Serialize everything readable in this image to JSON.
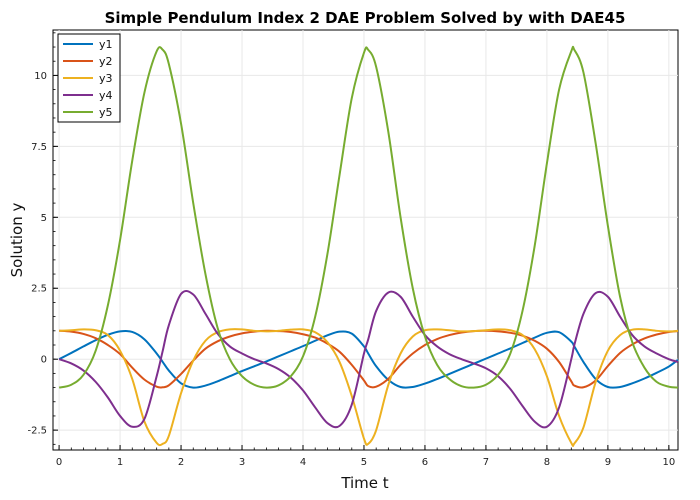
{
  "chart_data": {
    "type": "line",
    "title": "Simple Pendulum Index 2 DAE Problem Solved by with DAE45",
    "xlabel": "Time t",
    "ylabel": "Solution y",
    "xlim": [
      -0.1,
      10.15
    ],
    "ylim": [
      -3.2,
      11.6
    ],
    "xticks": [
      0,
      1,
      2,
      3,
      4,
      5,
      6,
      7,
      8,
      9,
      10
    ],
    "xtick_labels": [
      "0",
      "1",
      "2",
      "3",
      "4",
      "5",
      "6",
      "7",
      "8",
      "9",
      "10"
    ],
    "yticks": [
      -2.5,
      0,
      2.5,
      5,
      7.5,
      10
    ],
    "ytick_labels": [
      "-2.5",
      "0",
      "2.5",
      "5",
      "7.5",
      "10"
    ],
    "grid": true,
    "legend_position": "top-left",
    "x": [
      0,
      0.2,
      0.4,
      0.6,
      0.8,
      1.0,
      1.2,
      1.4,
      1.6,
      1.7,
      1.8,
      2.0,
      2.2,
      2.4,
      2.6,
      2.8,
      3.0,
      3.2,
      3.4,
      3.6,
      3.8,
      4.0,
      4.2,
      4.4,
      4.6,
      4.8,
      5.0,
      5.07,
      5.2,
      5.4,
      5.6,
      5.8,
      6.0,
      6.2,
      6.4,
      6.6,
      6.8,
      7.0,
      7.2,
      7.4,
      7.6,
      7.8,
      8.0,
      8.2,
      8.4,
      8.45,
      8.6,
      8.8,
      9.0,
      9.2,
      9.4,
      9.6,
      9.8,
      10.0,
      10.15
    ],
    "series": [
      {
        "name": "y1",
        "color": "#0072bd",
        "values": [
          0,
          0.22,
          0.45,
          0.67,
          0.86,
          0.98,
          0.96,
          0.7,
          0.2,
          -0.1,
          -0.4,
          -0.85,
          -1.0,
          -0.93,
          -0.78,
          -0.6,
          -0.42,
          -0.25,
          -0.08,
          0.1,
          0.28,
          0.46,
          0.65,
          0.84,
          0.97,
          0.9,
          0.45,
          0.2,
          -0.25,
          -0.73,
          -0.98,
          -0.98,
          -0.86,
          -0.7,
          -0.52,
          -0.34,
          -0.16,
          0.02,
          0.2,
          0.38,
          0.57,
          0.76,
          0.93,
          0.95,
          0.62,
          0.45,
          -0.1,
          -0.7,
          -0.98,
          -0.98,
          -0.85,
          -0.68,
          -0.48,
          -0.26,
          -0.02
        ]
      },
      {
        "name": "y2",
        "color": "#d95319",
        "values": [
          1,
          0.97,
          0.89,
          0.74,
          0.5,
          0.18,
          -0.3,
          -0.72,
          -0.97,
          -0.99,
          -0.92,
          -0.52,
          -0.05,
          0.37,
          0.63,
          0.8,
          0.91,
          0.97,
          1.0,
          0.99,
          0.96,
          0.88,
          0.76,
          0.55,
          0.26,
          -0.2,
          -0.75,
          -0.95,
          -0.97,
          -0.69,
          -0.2,
          0.2,
          0.5,
          0.71,
          0.85,
          0.94,
          0.99,
          1.0,
          0.98,
          0.93,
          0.83,
          0.65,
          0.37,
          -0.1,
          -0.78,
          -0.93,
          -0.99,
          -0.75,
          -0.24,
          0.22,
          0.52,
          0.73,
          0.87,
          0.96,
          0.99
        ]
      },
      {
        "name": "y3",
        "color": "#edb120",
        "values": [
          1,
          1.02,
          1.05,
          1.02,
          0.85,
          0.3,
          -0.7,
          -2.2,
          -2.95,
          -2.98,
          -2.7,
          -1.2,
          -0.05,
          0.65,
          0.95,
          1.05,
          1.05,
          1.0,
          0.98,
          1.0,
          1.04,
          1.05,
          0.95,
          0.6,
          -0.1,
          -1.3,
          -2.8,
          -2.98,
          -2.5,
          -0.9,
          0.2,
          0.8,
          1.02,
          1.05,
          1.02,
          0.98,
          0.99,
          1.02,
          1.05,
          1.02,
          0.85,
          0.35,
          -0.6,
          -2.0,
          -2.95,
          -2.97,
          -2.4,
          -0.8,
          0.3,
          0.85,
          1.04,
          1.05,
          1.0,
          0.98,
          1.0
        ]
      },
      {
        "name": "y4",
        "color": "#7e2f8e",
        "values": [
          0,
          -0.15,
          -0.4,
          -0.8,
          -1.35,
          -2.0,
          -2.38,
          -2.1,
          -0.6,
          0.3,
          1.2,
          2.3,
          2.28,
          1.6,
          0.9,
          0.45,
          0.2,
          0.0,
          -0.15,
          -0.35,
          -0.65,
          -1.1,
          -1.7,
          -2.25,
          -2.35,
          -1.6,
          0.2,
          0.7,
          1.7,
          2.35,
          2.2,
          1.5,
          0.85,
          0.45,
          0.18,
          0.0,
          -0.15,
          -0.32,
          -0.6,
          -1.05,
          -1.65,
          -2.2,
          -2.38,
          -1.7,
          0.0,
          0.5,
          1.6,
          2.33,
          2.2,
          1.5,
          0.85,
          0.45,
          0.2,
          0.0,
          -0.1
        ]
      },
      {
        "name": "y5",
        "color": "#77ac30",
        "values": [
          -1.0,
          -0.9,
          -0.55,
          0.3,
          1.9,
          4.2,
          7.0,
          9.4,
          10.85,
          10.9,
          10.4,
          8.3,
          5.5,
          3.0,
          1.1,
          0.0,
          -0.6,
          -0.9,
          -1.0,
          -0.92,
          -0.6,
          0.1,
          1.5,
          3.7,
          6.5,
          9.2,
          10.8,
          10.9,
          10.3,
          8.0,
          5.0,
          2.5,
          0.8,
          -0.2,
          -0.7,
          -0.95,
          -1.0,
          -0.9,
          -0.55,
          0.2,
          1.7,
          4.0,
          6.9,
          9.5,
          10.85,
          10.9,
          10.1,
          7.6,
          4.7,
          2.2,
          0.6,
          -0.3,
          -0.8,
          -0.97,
          -1.0
        ]
      }
    ]
  }
}
